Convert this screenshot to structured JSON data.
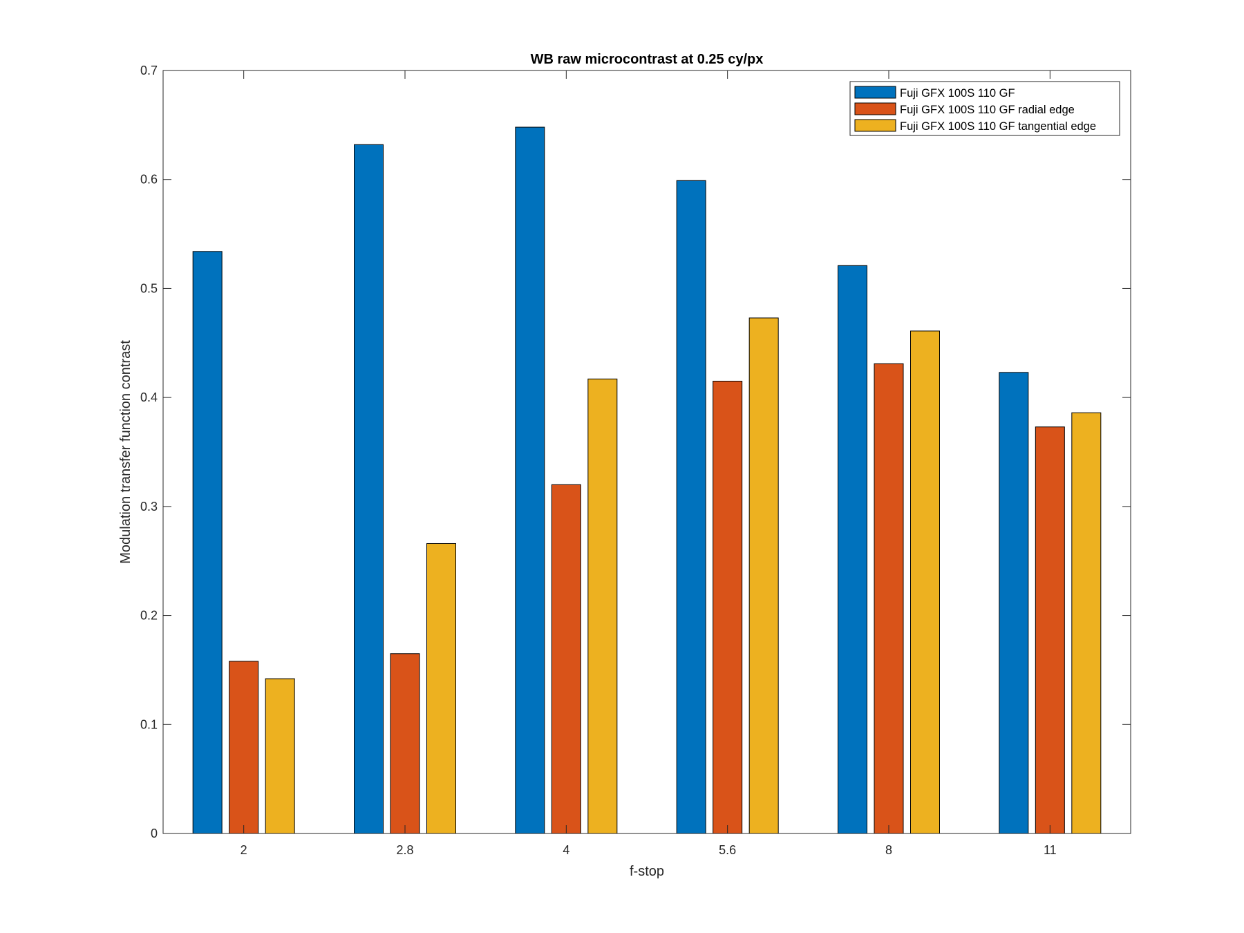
{
  "chart_data": {
    "type": "bar",
    "title": "WB raw  microcontrast at 0.25 cy/px",
    "xlabel": "f-stop",
    "ylabel": "Modulation transfer function contrast",
    "categories": [
      "2",
      "2.8",
      "4",
      "5.6",
      "8",
      "11"
    ],
    "ylim": [
      0,
      0.7
    ],
    "yticks": [
      "0",
      "0.1",
      "0.2",
      "0.3",
      "0.4",
      "0.5",
      "0.6",
      "0.7"
    ],
    "grid": false,
    "legend_position": "top-right",
    "series": [
      {
        "name": "Fuji GFX 100S 110 GF",
        "color": "#0072BD",
        "values": [
          0.534,
          0.632,
          0.648,
          0.599,
          0.521,
          0.423
        ]
      },
      {
        "name": "Fuji GFX 100S 110 GF radial edge",
        "color": "#D95319",
        "values": [
          0.158,
          0.165,
          0.32,
          0.415,
          0.431,
          0.373
        ]
      },
      {
        "name": "Fuji GFX 100S 110 GF tangential edge",
        "color": "#EDB120",
        "values": [
          0.142,
          0.266,
          0.417,
          0.473,
          0.461,
          0.386
        ]
      }
    ]
  }
}
